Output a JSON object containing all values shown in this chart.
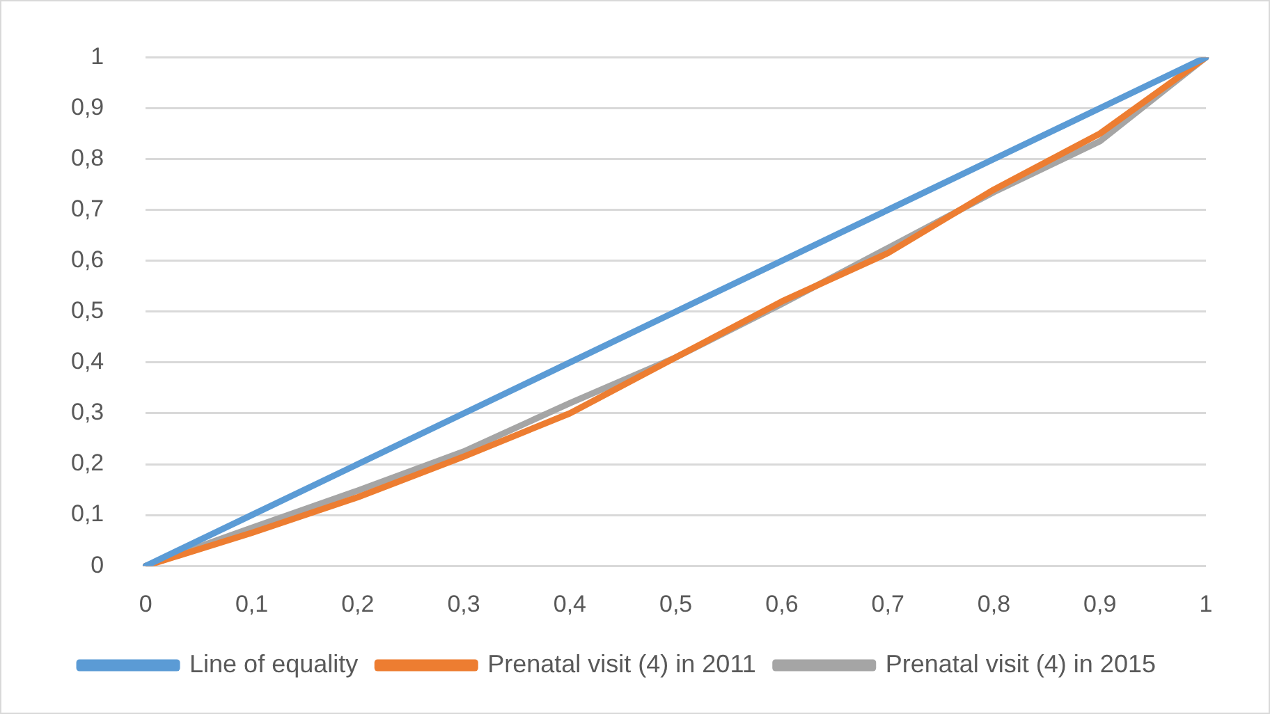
{
  "chart_data": {
    "type": "line",
    "categories": [
      "0",
      "0,1",
      "0,2",
      "0,3",
      "0,4",
      "0,5",
      "0,6",
      "0,7",
      "0,8",
      "0,9",
      "1"
    ],
    "series": [
      {
        "name": "Line of equality",
        "color": "#5b9bd5",
        "values": [
          0,
          0.1,
          0.2,
          0.3,
          0.4,
          0.5,
          0.6,
          0.7,
          0.8,
          0.9,
          1
        ]
      },
      {
        "name": "Prenatal visit (4) in 2011",
        "color": "#ed7d31",
        "values": [
          0,
          0.065,
          0.135,
          0.215,
          0.3,
          0.41,
          0.52,
          0.615,
          0.74,
          0.85,
          1
        ]
      },
      {
        "name": "Prenatal visit (4) in 2015",
        "color": "#a5a5a5",
        "values": [
          0,
          0.075,
          0.148,
          0.225,
          0.32,
          0.41,
          0.515,
          0.625,
          0.735,
          0.835,
          1
        ]
      }
    ],
    "ylim": [
      0,
      1
    ],
    "yticks": [
      0,
      {
        "value": 0.1,
        "label": "0,1"
      },
      {
        "value": 0.2,
        "label": "0,2"
      },
      {
        "value": 0.3,
        "label": "0,3"
      },
      {
        "value": 0.4,
        "label": "0,4"
      },
      {
        "value": 0.5,
        "label": "0,5"
      },
      {
        "value": 0.6,
        "label": "0,6"
      },
      {
        "value": 0.7,
        "label": "0,7"
      },
      {
        "value": 0.8,
        "label": "0,8"
      },
      {
        "value": 0.9,
        "label": "0,9"
      },
      1
    ],
    "grid": "y",
    "legend": "bottom",
    "marker": "none",
    "line_style": "solid"
  }
}
